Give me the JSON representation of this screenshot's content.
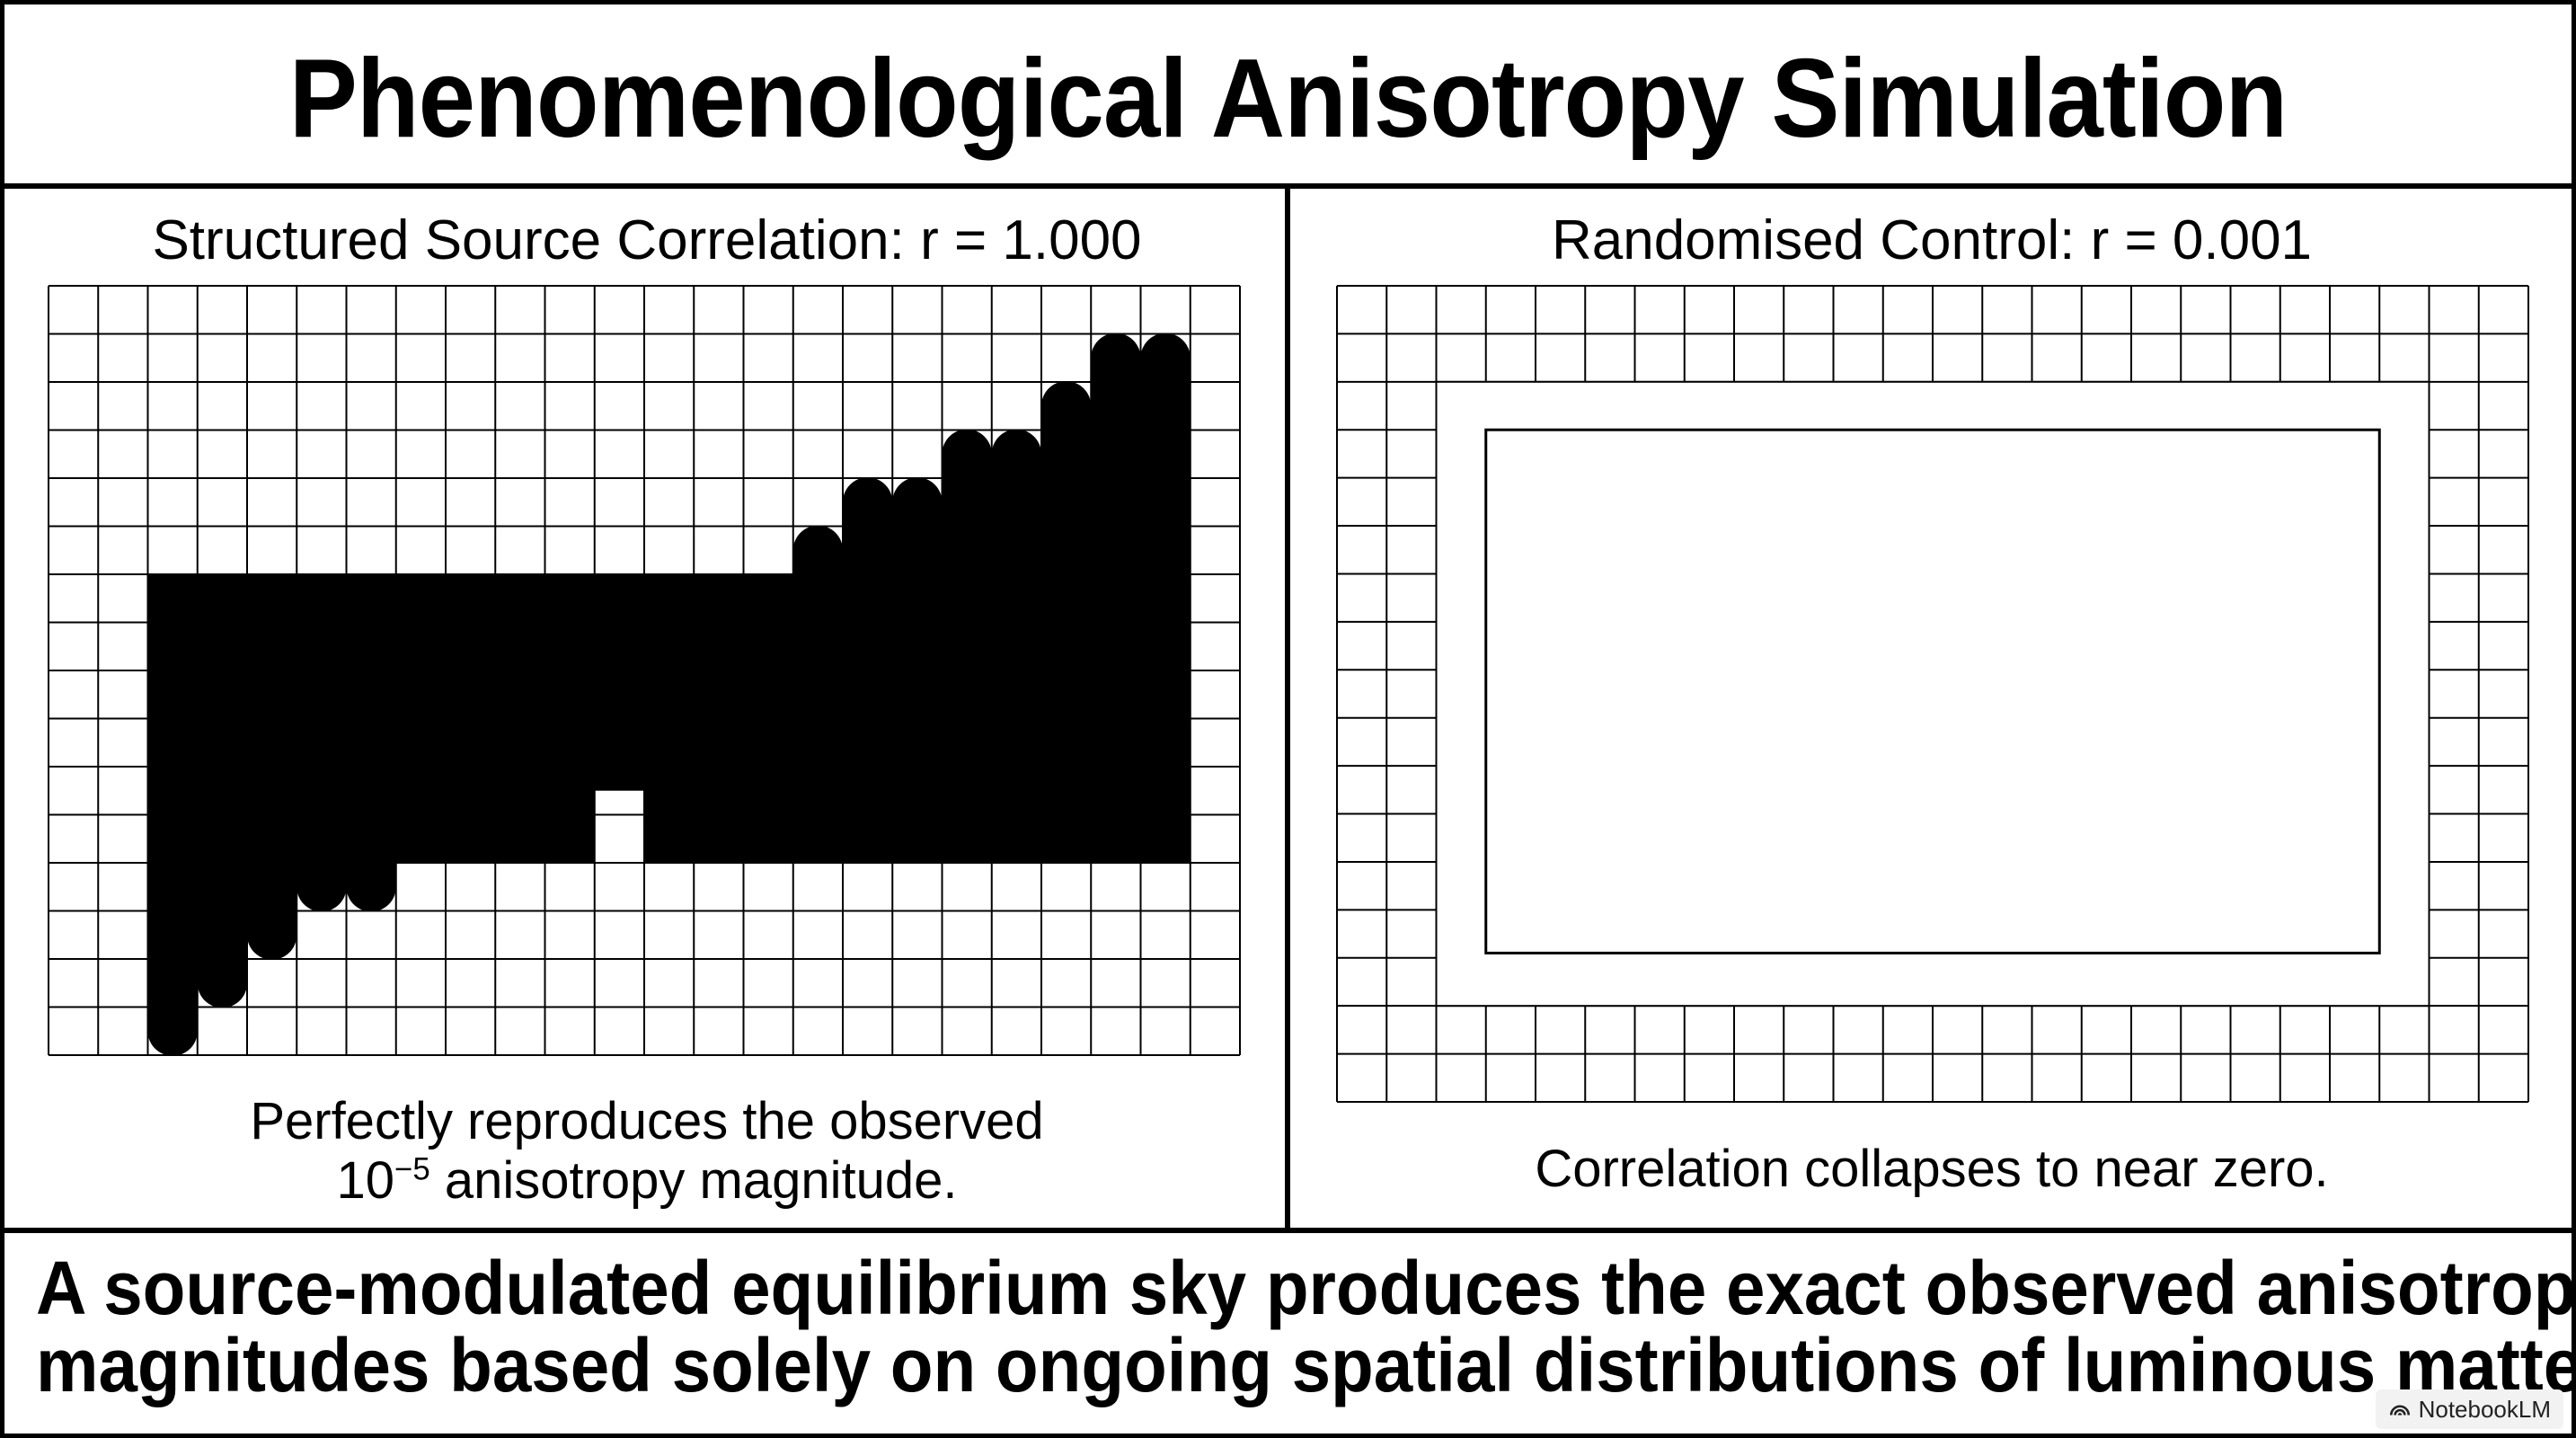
{
  "title": "Phenomenological Anisotropy Simulation",
  "left_panel": {
    "title": "Structured Source Correlation: r = 1.000",
    "caption_line1": "Perfectly reproduces the observed",
    "caption_line2_base": "10",
    "caption_line2_sup": "−5",
    "caption_line2_rest": " anisotropy magnitude."
  },
  "right_panel": {
    "title": "Randomised Control: r = 0.001",
    "caption": "Correlation collapses to near zero."
  },
  "conclusion": {
    "line1": "A source-modulated equilibrium sky produces the exact observed anisotropy",
    "line2": "magnitudes based solely on ongoing spatial distributions of luminous matter."
  },
  "watermark": "NotebookLM",
  "colors": {
    "ink": "#000000",
    "paper": "#ffffff"
  },
  "left_diagram": {
    "grid_columns": 24,
    "grid_rows": 16,
    "block_rows": {
      "start": 6,
      "end": 12
    },
    "block_columns_filled": [
      [
        2,
        10
      ],
      [
        12,
        22
      ]
    ],
    "staircase_left_bottoms": [
      15,
      14,
      13,
      12,
      12,
      11,
      11,
      11
    ],
    "staircase_right_tops": [
      7,
      6,
      5,
      4,
      4,
      3,
      3,
      2,
      1,
      1
    ]
  },
  "right_diagram": {
    "grid_columns": 24,
    "grid_rows": 17,
    "border_cells": 2
  }
}
